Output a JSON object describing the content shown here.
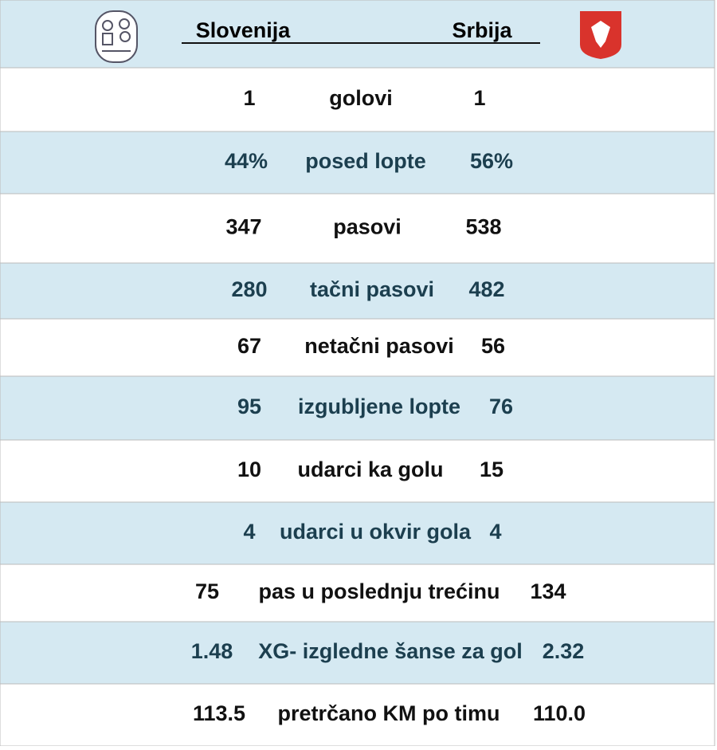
{
  "header": {
    "home": "Slovenija",
    "away": "Srbija"
  },
  "table": {
    "rows": [
      [
        "1",
        "golovi",
        "1"
      ],
      [
        "44%",
        "posed lopte",
        "56%"
      ],
      [
        "347",
        "pasovi",
        "538"
      ],
      [
        "280",
        "tačni pasovi",
        "482"
      ],
      [
        "67",
        "netačni pasovi",
        "56"
      ],
      [
        "95",
        "izgubljene lopte",
        "76"
      ],
      [
        "10",
        "udarci ka golu",
        "15"
      ],
      [
        "4",
        "udarci u okvir gola",
        "4"
      ],
      [
        "75",
        "pas u poslednju trećinu",
        "134"
      ],
      [
        "1.48",
        "XG- izgledne šanse za gol",
        "2.32"
      ],
      [
        "113.5",
        "pretrčano KM po timu",
        "110.0"
      ]
    ]
  }
}
